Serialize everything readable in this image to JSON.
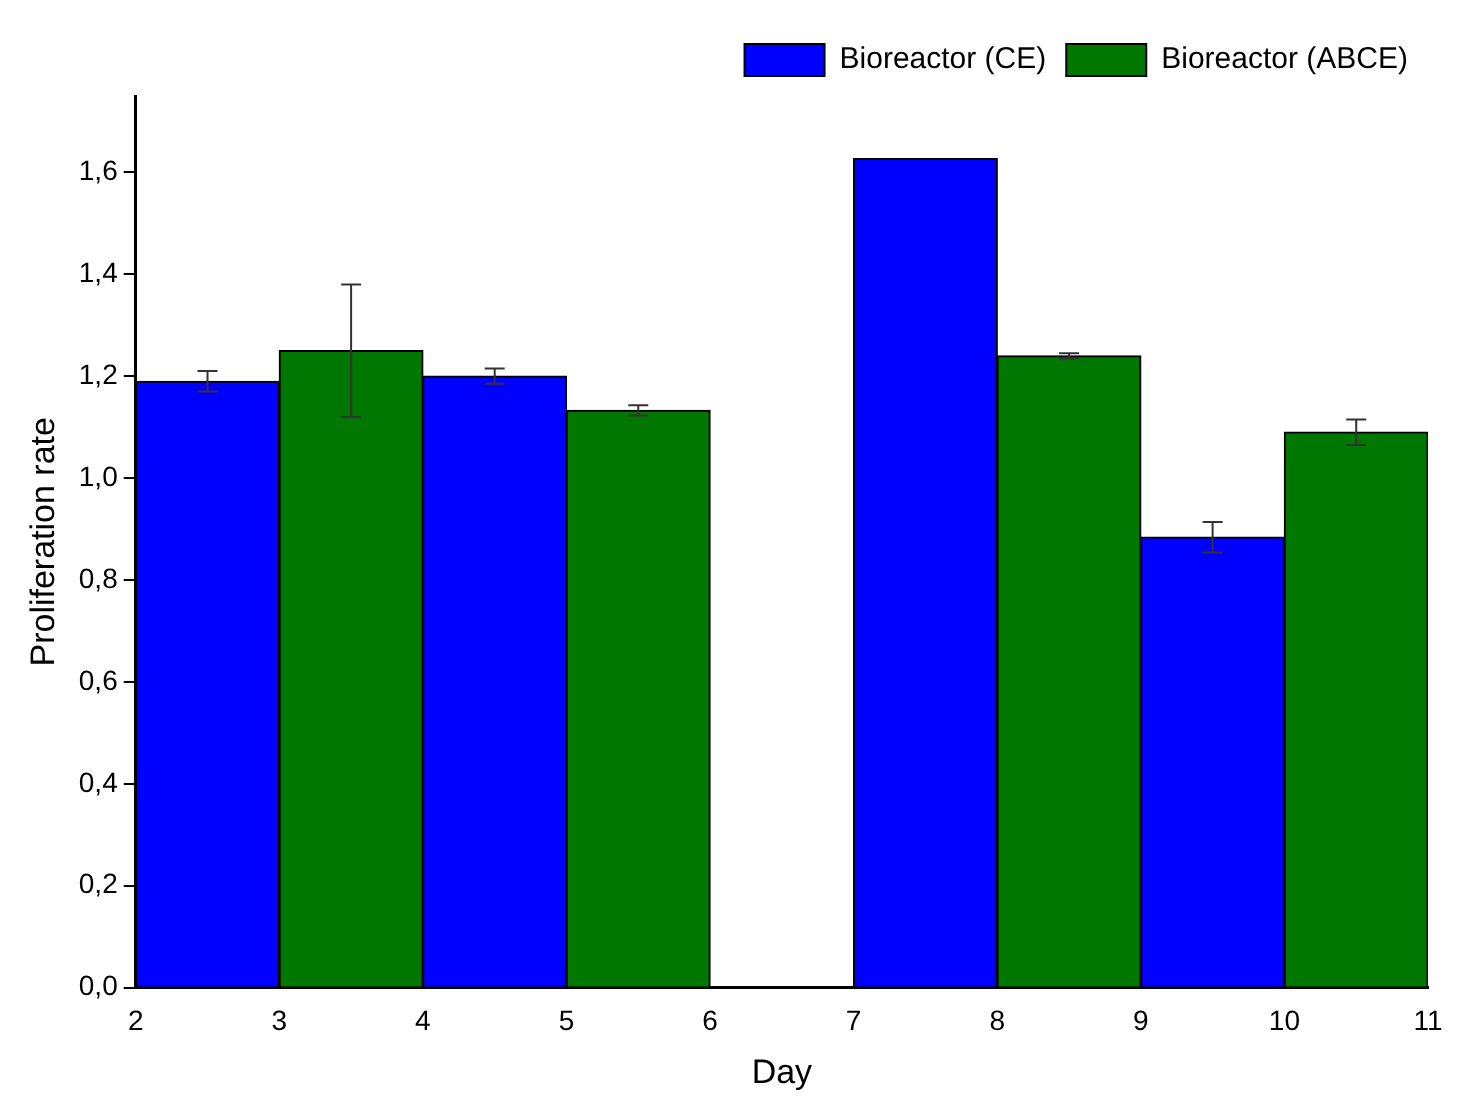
{
  "chart_data": {
    "type": "bar",
    "xlabel": "Day",
    "ylabel": "Proliferation rate",
    "series": [
      {
        "name": "Bioreactor (CE)",
        "color": "#0000ff",
        "x": [
          2.5,
          4.5,
          7.5,
          9.5
        ],
        "values": [
          1.19,
          1.2,
          1.627,
          0.884
        ],
        "errors": [
          0.02,
          0.015,
          null,
          0.03
        ]
      },
      {
        "name": "Bioreactor (ABCE)",
        "color": "#007700",
        "x": [
          3.5,
          5.5,
          8.5,
          10.5
        ],
        "values": [
          1.25,
          1.133,
          1.24,
          1.09
        ],
        "errors": [
          0.13,
          0.01,
          0.005,
          0.025
        ]
      }
    ],
    "xlim": [
      2,
      11
    ],
    "xticks": [
      2,
      3,
      4,
      5,
      6,
      7,
      8,
      9,
      10,
      11
    ],
    "ylim": [
      0,
      1.75
    ],
    "yticks": [
      {
        "value": 0,
        "label": "0,0"
      },
      {
        "value": 0.2,
        "label": "0,2"
      },
      {
        "value": 0.4,
        "label": "0,4"
      },
      {
        "value": 0.6,
        "label": "0,6"
      },
      {
        "value": 0.8,
        "label": "0,8"
      },
      {
        "value": 1,
        "label": "1,0"
      },
      {
        "value": 1.2,
        "label": "1,2"
      },
      {
        "value": 1.4,
        "label": "1,4"
      },
      {
        "value": 1.6,
        "label": "1,6"
      }
    ],
    "grid": false,
    "legend": "top right"
  }
}
